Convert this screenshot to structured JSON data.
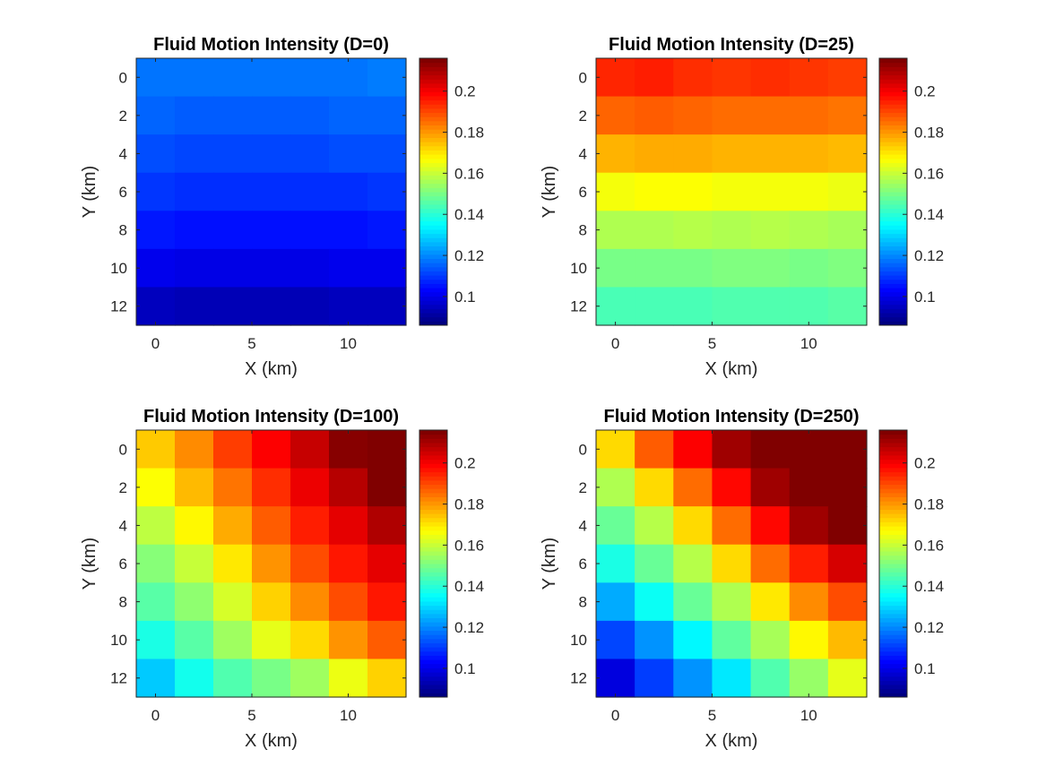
{
  "chart_data": [
    {
      "type": "heatmap",
      "title": "Fluid Motion Intensity (D=0)",
      "xlabel": "X (km)",
      "ylabel": "Y (km)",
      "x": [
        0,
        2,
        4,
        6,
        8,
        10,
        12
      ],
      "y": [
        0,
        2,
        4,
        6,
        8,
        10,
        12
      ],
      "xticks": [
        "0",
        "5",
        "10"
      ],
      "yticks": [
        "0",
        "2",
        "4",
        "6",
        "8",
        "10",
        "12"
      ],
      "xlim": [
        -1,
        13
      ],
      "ylim": [
        -1,
        13
      ],
      "z": [
        [
          0.117,
          0.117,
          0.117,
          0.117,
          0.117,
          0.117,
          0.118
        ],
        [
          0.115,
          0.114,
          0.114,
          0.114,
          0.114,
          0.115,
          0.115
        ],
        [
          0.112,
          0.111,
          0.111,
          0.111,
          0.111,
          0.112,
          0.112
        ],
        [
          0.109,
          0.108,
          0.108,
          0.108,
          0.108,
          0.108,
          0.109
        ],
        [
          0.105,
          0.104,
          0.104,
          0.104,
          0.104,
          0.104,
          0.105
        ],
        [
          0.1,
          0.099,
          0.099,
          0.099,
          0.099,
          0.1,
          0.1
        ],
        [
          0.094,
          0.093,
          0.093,
          0.093,
          0.093,
          0.094,
          0.094
        ]
      ]
    },
    {
      "type": "heatmap",
      "title": "Fluid Motion Intensity (D=25)",
      "xlabel": "X (km)",
      "ylabel": "Y (km)",
      "x": [
        0,
        2,
        4,
        6,
        8,
        10,
        12
      ],
      "y": [
        0,
        2,
        4,
        6,
        8,
        10,
        12
      ],
      "xticks": [
        "0",
        "5",
        "10"
      ],
      "yticks": [
        "0",
        "2",
        "4",
        "6",
        "8",
        "10",
        "12"
      ],
      "xlim": [
        -1,
        13
      ],
      "ylim": [
        -1,
        13
      ],
      "z": [
        [
          0.195,
          0.196,
          0.194,
          0.193,
          0.194,
          0.193,
          0.192
        ],
        [
          0.187,
          0.188,
          0.187,
          0.186,
          0.186,
          0.186,
          0.185
        ],
        [
          0.177,
          0.178,
          0.178,
          0.177,
          0.177,
          0.177,
          0.176
        ],
        [
          0.166,
          0.167,
          0.167,
          0.166,
          0.166,
          0.166,
          0.165
        ],
        [
          0.157,
          0.157,
          0.158,
          0.157,
          0.158,
          0.157,
          0.156
        ],
        [
          0.15,
          0.15,
          0.15,
          0.151,
          0.151,
          0.15,
          0.151
        ],
        [
          0.144,
          0.144,
          0.144,
          0.145,
          0.145,
          0.145,
          0.146
        ]
      ]
    },
    {
      "type": "heatmap",
      "title": "Fluid Motion Intensity (D=100)",
      "xlabel": "X (km)",
      "ylabel": "Y (km)",
      "x": [
        0,
        2,
        4,
        6,
        8,
        10,
        12
      ],
      "y": [
        0,
        2,
        4,
        6,
        8,
        10,
        12
      ],
      "xticks": [
        "0",
        "5",
        "10"
      ],
      "yticks": [
        "0",
        "2",
        "4",
        "6",
        "8",
        "10",
        "12"
      ],
      "xlim": [
        -1,
        13
      ],
      "ylim": [
        -1,
        13
      ],
      "z": [
        [
          0.174,
          0.182,
          0.192,
          0.2,
          0.207,
          0.215,
          0.222
        ],
        [
          0.167,
          0.176,
          0.185,
          0.194,
          0.202,
          0.209,
          0.216
        ],
        [
          0.159,
          0.168,
          0.178,
          0.188,
          0.196,
          0.203,
          0.21
        ],
        [
          0.152,
          0.16,
          0.17,
          0.181,
          0.19,
          0.197,
          0.203
        ],
        [
          0.146,
          0.153,
          0.162,
          0.173,
          0.182,
          0.19,
          0.197
        ],
        [
          0.138,
          0.146,
          0.155,
          0.164,
          0.172,
          0.181,
          0.188
        ],
        [
          0.128,
          0.137,
          0.145,
          0.15,
          0.155,
          0.165,
          0.173
        ]
      ]
    },
    {
      "type": "heatmap",
      "title": "Fluid Motion Intensity (D=250)",
      "xlabel": "X (km)",
      "ylabel": "Y (km)",
      "x": [
        0,
        2,
        4,
        6,
        8,
        10,
        12
      ],
      "y": [
        0,
        2,
        4,
        6,
        8,
        10,
        12
      ],
      "xticks": [
        "0",
        "5",
        "10"
      ],
      "yticks": [
        "0",
        "2",
        "4",
        "6",
        "8",
        "10",
        "12"
      ],
      "xlim": [
        -1,
        13
      ],
      "ylim": [
        -1,
        13
      ],
      "z": [
        [
          0.172,
          0.188,
          0.2,
          0.212,
          0.225,
          0.232,
          0.238
        ],
        [
          0.157,
          0.172,
          0.186,
          0.199,
          0.212,
          0.226,
          0.232
        ],
        [
          0.148,
          0.158,
          0.172,
          0.186,
          0.199,
          0.212,
          0.226
        ],
        [
          0.138,
          0.148,
          0.158,
          0.172,
          0.186,
          0.196,
          0.205
        ],
        [
          0.124,
          0.136,
          0.148,
          0.157,
          0.17,
          0.182,
          0.19
        ],
        [
          0.111,
          0.121,
          0.134,
          0.147,
          0.156,
          0.168,
          0.176
        ],
        [
          0.098,
          0.11,
          0.121,
          0.132,
          0.145,
          0.154,
          0.164
        ]
      ]
    }
  ],
  "colorbar": {
    "colormap": "jet",
    "clim": [
      0.086,
      0.216
    ],
    "ticks": [
      0.1,
      0.12,
      0.14,
      0.16,
      0.18,
      0.2
    ],
    "tick_labels": [
      "0.1",
      "0.12",
      "0.14",
      "0.16",
      "0.18",
      "0.2"
    ]
  }
}
